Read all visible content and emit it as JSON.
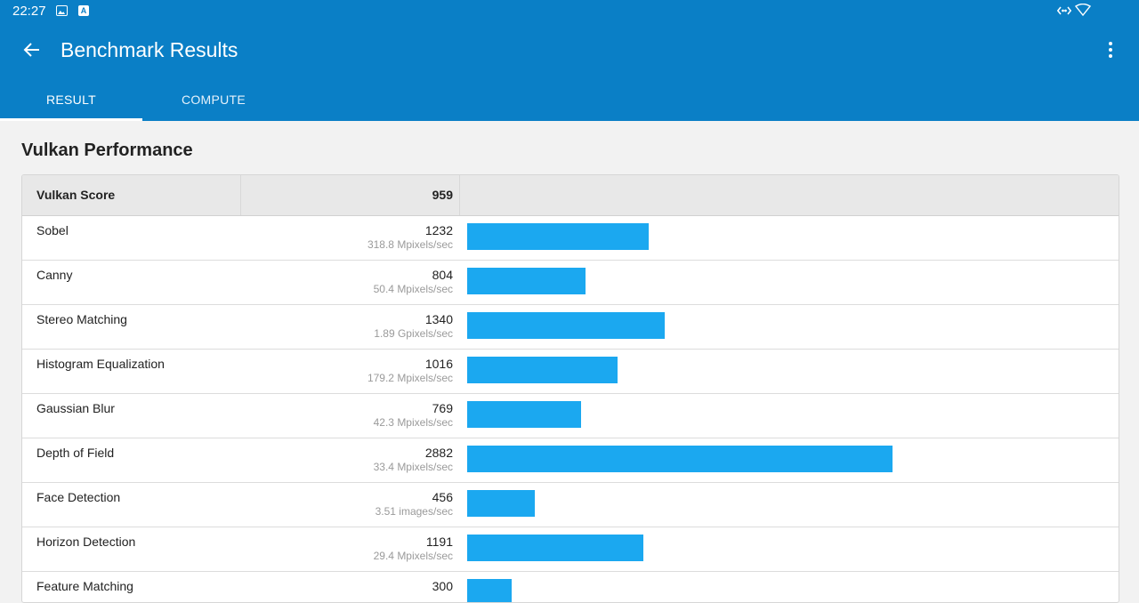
{
  "status_bar": {
    "time": "22:27",
    "icons": [
      "image-icon",
      "a-badge-icon",
      "code-icon",
      "wifi-icon"
    ]
  },
  "header": {
    "title": "Benchmark Results",
    "back_icon": "arrow-left-icon",
    "menu_icon": "more-vert-icon"
  },
  "tabs": [
    {
      "label": "RESULT",
      "selected": true
    },
    {
      "label": "COMPUTE",
      "selected": false
    }
  ],
  "section": {
    "title": "Vulkan Performance"
  },
  "table": {
    "score_label": "Vulkan Score",
    "score_value": "959",
    "bar_color": "#1ba8f0",
    "rows": [
      {
        "name": "Sobel",
        "score": "1232",
        "unit": "318.8 Mpixels/sec"
      },
      {
        "name": "Canny",
        "score": "804",
        "unit": "50.4 Mpixels/sec"
      },
      {
        "name": "Stereo Matching",
        "score": "1340",
        "unit": "1.89 Gpixels/sec"
      },
      {
        "name": "Histogram Equalization",
        "score": "1016",
        "unit": "179.2 Mpixels/sec"
      },
      {
        "name": "Gaussian Blur",
        "score": "769",
        "unit": "42.3 Mpixels/sec"
      },
      {
        "name": "Depth of Field",
        "score": "2882",
        "unit": "33.4 Mpixels/sec"
      },
      {
        "name": "Face Detection",
        "score": "456",
        "unit": "3.51 images/sec"
      },
      {
        "name": "Horizon Detection",
        "score": "1191",
        "unit": "29.4 Mpixels/sec"
      },
      {
        "name": "Feature Matching",
        "score": "300",
        "unit": ""
      }
    ]
  },
  "colors": {
    "app_bar": "#0a7fc6",
    "accent": "#1ba8f0",
    "background": "#f2f2f2"
  }
}
